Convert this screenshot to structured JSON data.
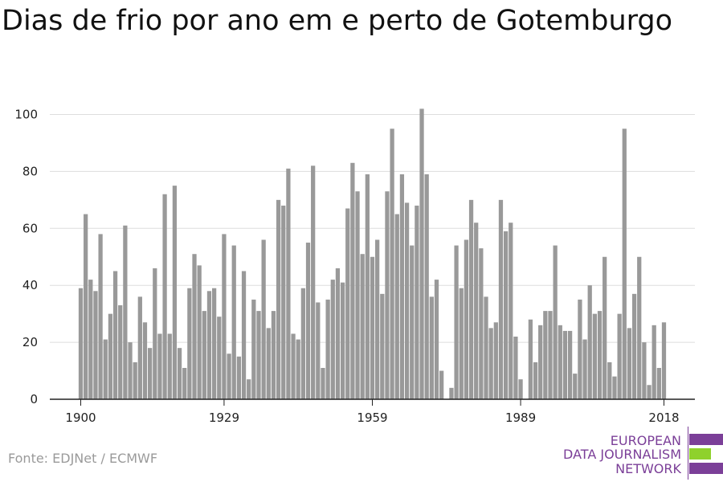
{
  "title": "Dias de frio por ano em e perto de Gotemburgo",
  "source": "Fonte: EDJNet / ECMWF",
  "logo": {
    "lines": [
      "EUROPEAN",
      "DATA JOURNALISM",
      "NETWORK"
    ],
    "colors": {
      "purple": "#7b3f98",
      "green": "#8fd12c"
    }
  },
  "colors": {
    "bar": "#999999",
    "grid": "#dddddd",
    "axis": "#222222",
    "tick_text": "#222222"
  },
  "chart_data": {
    "type": "bar",
    "x_start": 1900,
    "x_end": 2018,
    "xticks": [
      1900,
      1929,
      1959,
      1989,
      2018
    ],
    "yticks": [
      0,
      20,
      40,
      60,
      80,
      100
    ],
    "ylim": [
      0,
      102
    ],
    "grid": true,
    "values": [
      39,
      65,
      42,
      38,
      58,
      21,
      30,
      45,
      33,
      61,
      20,
      13,
      36,
      27,
      18,
      46,
      23,
      72,
      23,
      75,
      18,
      11,
      39,
      51,
      47,
      31,
      38,
      39,
      29,
      58,
      16,
      54,
      15,
      45,
      7,
      35,
      31,
      56,
      25,
      31,
      70,
      68,
      81,
      23,
      21,
      39,
      55,
      82,
      34,
      11,
      35,
      42,
      46,
      41,
      67,
      83,
      73,
      51,
      79,
      50,
      56,
      37,
      73,
      95,
      65,
      79,
      69,
      54,
      68,
      102,
      79,
      36,
      42,
      10,
      0,
      4,
      54,
      39,
      56,
      70,
      62,
      53,
      36,
      25,
      27,
      70,
      59,
      62,
      22,
      7,
      0,
      28,
      13,
      26,
      31,
      31,
      54,
      26,
      24,
      24,
      9,
      35,
      21,
      40,
      30,
      31,
      50,
      13,
      8,
      30,
      95,
      25,
      37,
      50,
      20,
      5,
      26,
      11,
      27
    ]
  }
}
